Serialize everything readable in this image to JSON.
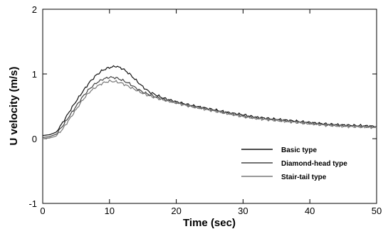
{
  "chart_data": {
    "type": "line",
    "title": "",
    "xlabel": "Time (sec)",
    "ylabel": "U velocity (m/s)",
    "xlim": [
      0,
      50
    ],
    "ylim": [
      -1,
      2
    ],
    "xticks": [
      0,
      10,
      20,
      30,
      40,
      50
    ],
    "yticks": [
      -1,
      0,
      1,
      2
    ],
    "grid": false,
    "legend_position": "lower-right",
    "series": [
      {
        "name": "Basic type",
        "color": "#111111",
        "x": [
          0,
          1,
          2,
          3,
          4,
          5,
          6,
          7,
          8,
          9,
          10,
          11,
          12,
          13,
          14,
          15,
          16,
          18,
          20,
          22,
          25,
          28,
          30,
          32,
          35,
          38,
          40,
          42,
          45,
          48,
          50
        ],
        "y": [
          0.05,
          0.06,
          0.1,
          0.25,
          0.42,
          0.58,
          0.73,
          0.87,
          0.98,
          1.06,
          1.1,
          1.12,
          1.08,
          1.0,
          0.9,
          0.8,
          0.72,
          0.63,
          0.57,
          0.52,
          0.46,
          0.4,
          0.37,
          0.33,
          0.3,
          0.27,
          0.25,
          0.23,
          0.21,
          0.2,
          0.19
        ]
      },
      {
        "name": "Diamond-head type",
        "color": "#444444",
        "x": [
          0,
          1,
          2,
          3,
          4,
          5,
          6,
          7,
          8,
          9,
          10,
          11,
          12,
          13,
          14,
          15,
          16,
          18,
          20,
          22,
          25,
          28,
          30,
          32,
          35,
          38,
          40,
          42,
          45,
          48,
          50
        ],
        "y": [
          0.02,
          0.03,
          0.07,
          0.2,
          0.35,
          0.5,
          0.65,
          0.77,
          0.86,
          0.92,
          0.95,
          0.94,
          0.9,
          0.85,
          0.78,
          0.72,
          0.68,
          0.61,
          0.56,
          0.51,
          0.45,
          0.39,
          0.35,
          0.32,
          0.29,
          0.26,
          0.24,
          0.22,
          0.2,
          0.19,
          0.18
        ]
      },
      {
        "name": "Stair-tail type",
        "color": "#777777",
        "x": [
          0,
          1,
          2,
          3,
          4,
          5,
          6,
          7,
          8,
          9,
          10,
          11,
          12,
          13,
          14,
          15,
          16,
          18,
          20,
          22,
          25,
          28,
          30,
          32,
          35,
          38,
          40,
          42,
          45,
          48,
          50
        ],
        "y": [
          0.0,
          0.01,
          0.04,
          0.15,
          0.3,
          0.45,
          0.6,
          0.72,
          0.8,
          0.86,
          0.89,
          0.88,
          0.85,
          0.8,
          0.75,
          0.7,
          0.66,
          0.6,
          0.55,
          0.5,
          0.44,
          0.38,
          0.34,
          0.31,
          0.28,
          0.25,
          0.23,
          0.21,
          0.19,
          0.18,
          0.17
        ]
      }
    ]
  }
}
